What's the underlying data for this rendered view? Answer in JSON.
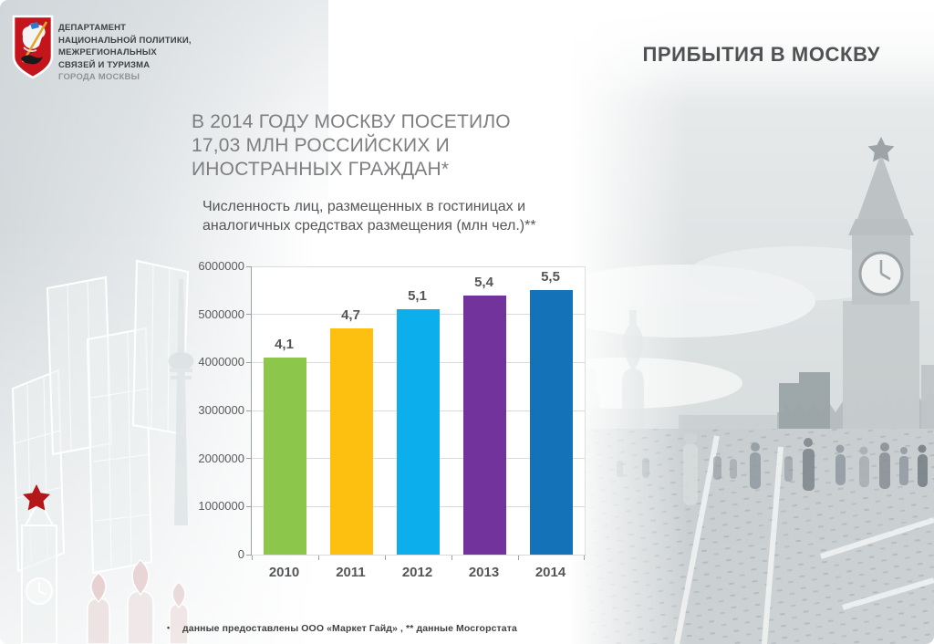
{
  "slide": {
    "header": {
      "logo_icon": "moscow-coat-of-arms",
      "department_lines": [
        "ДЕПАРТАМЕНТ",
        "НАЦИОНАЛЬНОЙ ПОЛИТИКИ,",
        "МЕЖРЕГИОНАЛЬНЫХ",
        "СВЯЗЕЙ И ТУРИЗМА",
        "ГОРОДА МОСКВЫ"
      ],
      "page_title": "ПРИБЫТИЯ В МОСКВУ"
    },
    "heading": {
      "line1": "В 2014 ГОДУ МОСКВУ ПОСЕТИЛО",
      "line2": "17,03 МЛН РОССИЙСКИХ И",
      "line3": "ИНОСТРАННЫХ ГРАЖДАН*"
    },
    "chart_caption": {
      "line1": "Численность лиц, размещенных в гостиницах и",
      "line2": "аналогичных средствах размещения (млн чел.)**"
    },
    "footer": {
      "bullet": "•",
      "note": "данные предоставлены ООО «Маркет Гайд» ,  ** данные Мосгорстата"
    }
  },
  "chart_data": {
    "type": "bar",
    "title": "Численность лиц, размещенных в гостиницах и аналогичных средствах размещения (млн чел.)**",
    "categories": [
      "2010",
      "2011",
      "2012",
      "2013",
      "2014"
    ],
    "values": [
      4100000,
      4700000,
      5100000,
      5400000,
      5500000
    ],
    "value_labels": [
      "4,1",
      "4,7",
      "5,1",
      "5,4",
      "5,5"
    ],
    "bar_colors": [
      "#8cc64a",
      "#fdbf10",
      "#0caeeb",
      "#72339d",
      "#1472b9"
    ],
    "ylim": [
      0,
      6000000
    ],
    "yticks": [
      0,
      1000000,
      2000000,
      3000000,
      4000000,
      5000000,
      6000000
    ],
    "ytick_labels": [
      "0",
      "1000000",
      "2000000",
      "3000000",
      "4000000",
      "5000000",
      "6000000"
    ],
    "xlabel": "",
    "ylabel": "",
    "grid": true,
    "legend": false
  },
  "colors": {
    "accent_red": "#b5161a",
    "page_title_text": "#4f5152",
    "heading_text": "#7c7e80",
    "caption_text": "#545657",
    "axis_text": "#595b5c"
  }
}
